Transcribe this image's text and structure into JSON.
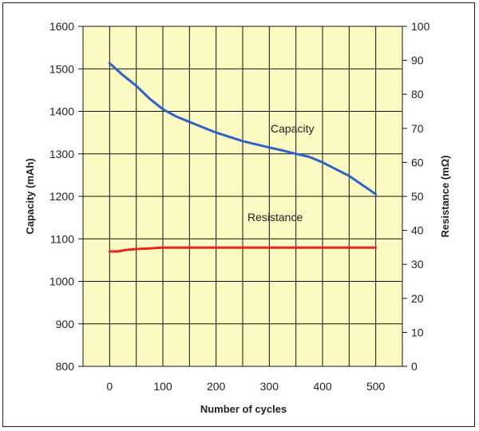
{
  "chart_data": {
    "type": "line",
    "title": "",
    "xlabel": "Number of cycles",
    "ylabel_left": "Capacity (mAh)",
    "ylabel_right": "Resistance (mΩ)",
    "xlim": [
      -50,
      550
    ],
    "ylim_left": [
      800,
      1600
    ],
    "ylim_right": [
      0,
      100
    ],
    "x_ticks": [
      "0",
      "100",
      "200",
      "300",
      "400",
      "500"
    ],
    "y_left_ticks": [
      "1600",
      "1500",
      "1400",
      "1300",
      "1200",
      "1100",
      "1000",
      "900",
      "800"
    ],
    "y_right_ticks": [
      "100",
      "90",
      "80",
      "70",
      "60",
      "50",
      "40",
      "30",
      "20",
      "10",
      "0"
    ],
    "grid": true,
    "background_color": "#fdfbc3",
    "series": [
      {
        "name": "Capacity",
        "axis": "left",
        "color": "#2b63c6",
        "x": [
          0,
          25,
          50,
          75,
          100,
          125,
          150,
          200,
          250,
          300,
          325,
          350,
          375,
          400,
          450,
          500
        ],
        "values": [
          1513,
          1485,
          1460,
          1430,
          1405,
          1388,
          1375,
          1350,
          1330,
          1315,
          1308,
          1300,
          1293,
          1280,
          1248,
          1205
        ]
      },
      {
        "name": "Resistance",
        "axis": "right",
        "color": "#e8261c",
        "x": [
          0,
          15,
          30,
          50,
          75,
          100,
          200,
          300,
          400,
          500
        ],
        "values": [
          33.8,
          33.8,
          34.2,
          34.5,
          34.7,
          34.9,
          34.9,
          34.9,
          34.9,
          34.9
        ]
      }
    ],
    "annotations": [
      "Capacity",
      "Resistance"
    ]
  }
}
